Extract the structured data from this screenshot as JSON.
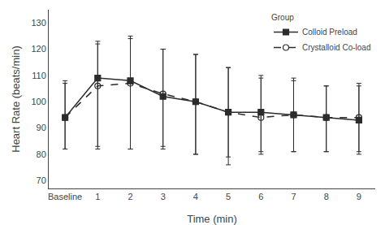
{
  "chart_data": {
    "type": "line",
    "categories": [
      "Baseline",
      "1",
      "2",
      "3",
      "4",
      "5",
      "6",
      "7",
      "8",
      "9"
    ],
    "series": [
      {
        "name": "Colloid Preload",
        "color": "#2c2c2c",
        "marker": "square",
        "line_style": "solid",
        "values": [
          94,
          109,
          108,
          102,
          100,
          96,
          96,
          95,
          94,
          93
        ],
        "error_upper": [
          13,
          14,
          17,
          18,
          18,
          17,
          14,
          14,
          12,
          13
        ],
        "error_lower": [
          12,
          26,
          26,
          20,
          20,
          20,
          15,
          14,
          13,
          13
        ]
      },
      {
        "name": "Crystalloid Co-load",
        "color": "#2c2c2c",
        "marker": "circle-open",
        "line_style": "dash",
        "values": [
          94,
          106,
          107,
          103,
          100,
          96,
          94,
          95,
          94,
          94
        ],
        "error_upper": [
          14,
          16,
          17,
          17,
          18,
          17,
          15,
          13,
          12,
          13
        ],
        "error_lower": [
          12,
          24,
          25,
          20,
          20,
          17,
          14,
          14,
          13,
          13
        ]
      }
    ],
    "xlabel": "Time (min)",
    "ylabel": "Heart Rate (beats/min)",
    "legend_title": "Group",
    "legend": "upper right",
    "ylim": [
      67,
      135
    ],
    "yticks": [
      70,
      80,
      90,
      100,
      110,
      120,
      130
    ],
    "grid": false
  }
}
